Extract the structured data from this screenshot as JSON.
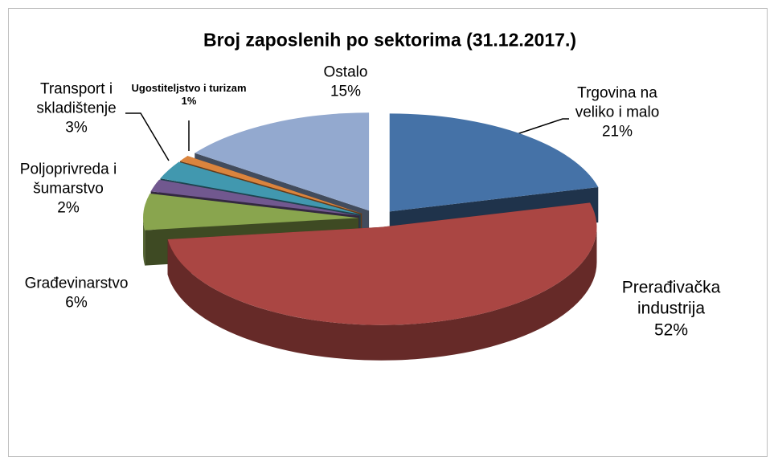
{
  "chart_data": {
    "type": "pie",
    "title": "Broj zaposlenih po sektorima (31.12.2017.)",
    "categories": [
      "Trgovina na veliko i malo",
      "Prerađivačka industrija",
      "Građevinarstvo",
      "Poljoprivreda i šumarstvo",
      "Transport i skladištenje",
      "Ugostiteljstvo i turizam",
      "Ostalo"
    ],
    "values": [
      21,
      52,
      6,
      2,
      3,
      1,
      15
    ],
    "value_labels": [
      "21%",
      "52%",
      "6%",
      "2%",
      "3%",
      "1%",
      "15%"
    ],
    "colors": [
      "#4572a7",
      "#aa4643",
      "#89a54e",
      "#71588f",
      "#4198af",
      "#db843d",
      "#93a9cf"
    ]
  }
}
